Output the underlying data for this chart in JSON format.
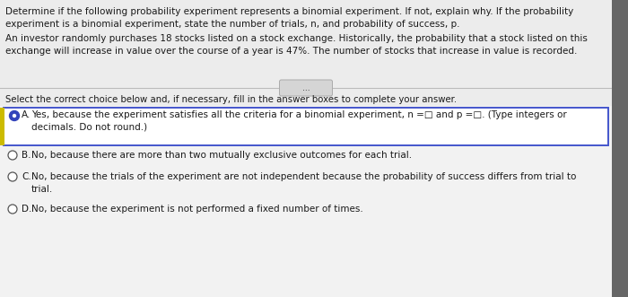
{
  "bg_color": "#f2f2f2",
  "top_bg": "#ececec",
  "bottom_bg": "#f2f2f2",
  "question_line1": "Determine if the following probability experiment represents a binomial experiment. If not, explain why. If the probability",
  "question_line2": "experiment is a binomial experiment, state the number of trials, n, and probability of success, p.",
  "scenario_line1": "An investor randomly purchases 18 stocks listed on a stock exchange. Historically, the probability that a stock listed on this",
  "scenario_line2": "exchange will increase in value over the course of a year is 47%. The number of stocks that increase in value is recorded.",
  "dots": "...",
  "select_text": "Select the correct choice below and, if necessary, fill in the answer boxes to complete your answer.",
  "optA_line1": "Yes, because the experiment satisfies all the criteria for a binomial experiment, n =□ and p =□. (Type integers or",
  "optA_line2": "decimals. Do not round.)",
  "optA_label": "A.",
  "optB_text": "No, because there are more than two mutually exclusive outcomes for each trial.",
  "optB_label": "B.",
  "optC_line1": "No, because the trials of the experiment are not independent because the probability of success differs from trial to",
  "optC_line2": "trial.",
  "optC_label": "C.",
  "optD_text": "No, because the experiment is not performed a fixed number of times.",
  "optD_label": "D.",
  "text_color": "#1a1a1a",
  "radio_selected_color": "#3344bb",
  "radio_border_color": "#555555",
  "box_border_color": "#4455cc",
  "yellow_bar_color": "#ccbb00",
  "right_bar_color": "#666666",
  "separator_color": "#bbbbbb",
  "dots_bg": "#d5d5d5",
  "dots_border": "#aaaaaa",
  "fontsize_main": 7.5,
  "fontsize_select": 7.3
}
